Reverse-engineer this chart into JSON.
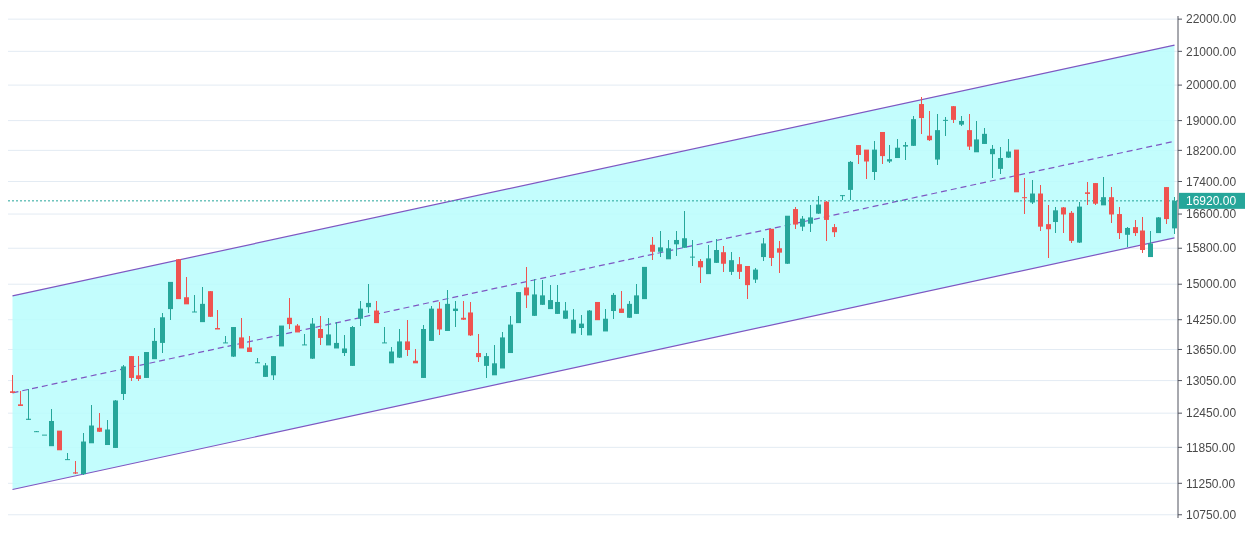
{
  "chart_data": {
    "type": "candlestick",
    "log": true,
    "grid": "y",
    "tick_labels": "y",
    "ylim": [
      10700,
      22100
    ],
    "yticks": [
      {
        "value": 10750,
        "label": "10750.00"
      },
      {
        "value": 11250,
        "label": "11250.00"
      },
      {
        "value": 11850,
        "label": "11850.00"
      },
      {
        "value": 12450,
        "label": "12450.00"
      },
      {
        "value": 13050,
        "label": "13050.00"
      },
      {
        "value": 13650,
        "label": "13650.00"
      },
      {
        "value": 14250,
        "label": "14250.00"
      },
      {
        "value": 15000,
        "label": "15000.00"
      },
      {
        "value": 15800,
        "label": "15800.00"
      },
      {
        "value": 16600,
        "label": "16600.00"
      },
      {
        "value": 17400,
        "label": "17400.00"
      },
      {
        "value": 18200,
        "label": "18200.00"
      },
      {
        "value": 19000,
        "label": "19000.00"
      },
      {
        "value": 20000,
        "label": "20000.00"
      },
      {
        "value": 21000,
        "label": "21000.00"
      },
      {
        "value": 22000,
        "label": "22000.00"
      }
    ],
    "series": [
      {
        "type": "line",
        "color": "#7e57c2",
        "line_style": "solid",
        "values": [
          14750,
          null,
          null,
          null,
          null,
          null,
          null,
          null,
          null,
          null,
          null,
          null,
          null,
          null,
          null,
          null,
          null,
          null,
          null,
          null,
          null,
          null,
          null,
          null,
          null,
          null,
          null,
          null,
          null,
          null,
          null,
          null,
          null,
          null,
          null,
          null,
          null,
          null,
          null,
          null,
          null,
          null,
          null,
          null,
          null,
          null,
          null,
          null,
          null,
          null,
          null,
          null,
          null,
          null,
          null,
          null,
          null,
          null,
          null,
          null,
          null,
          null,
          null,
          null,
          null,
          null,
          null,
          null,
          null,
          null,
          null,
          null,
          null,
          null,
          null,
          null,
          null,
          null,
          null,
          null,
          null,
          null,
          null,
          null,
          null,
          null,
          null,
          null,
          null,
          null,
          null,
          null,
          null,
          null,
          null,
          null,
          null,
          null,
          null,
          null,
          null,
          null,
          null,
          null,
          null,
          null,
          null,
          null,
          null,
          null,
          null,
          null,
          null,
          null,
          null,
          null,
          null,
          null,
          null,
          null,
          null,
          null,
          null,
          null,
          null,
          null,
          null,
          null,
          null,
          null,
          null,
          null,
          null,
          null,
          null,
          null,
          null,
          null,
          null,
          null,
          null,
          null,
          null,
          null,
          null,
          null,
          null,
          21190
        ]
      },
      {
        "type": "line",
        "color": "#7e57c2",
        "line_style": "solid",
        "values": [
          11150,
          null,
          null,
          null,
          null,
          null,
          null,
          null,
          null,
          null,
          null,
          null,
          null,
          null,
          null,
          null,
          null,
          null,
          null,
          null,
          null,
          null,
          null,
          null,
          null,
          null,
          null,
          null,
          null,
          null,
          null,
          null,
          null,
          null,
          null,
          null,
          null,
          null,
          null,
          null,
          null,
          null,
          null,
          null,
          null,
          null,
          null,
          null,
          null,
          null,
          null,
          null,
          null,
          null,
          null,
          null,
          null,
          null,
          null,
          null,
          null,
          null,
          null,
          null,
          null,
          null,
          null,
          null,
          null,
          null,
          null,
          null,
          null,
          null,
          null,
          null,
          null,
          null,
          null,
          null,
          null,
          null,
          null,
          null,
          null,
          null,
          null,
          null,
          null,
          null,
          null,
          null,
          null,
          null,
          null,
          null,
          null,
          null,
          null,
          null,
          null,
          null,
          null,
          null,
          null,
          null,
          null,
          null,
          null,
          null,
          null,
          null,
          null,
          null,
          null,
          null,
          null,
          null,
          null,
          null,
          null,
          null,
          null,
          null,
          null,
          null,
          null,
          null,
          null,
          null,
          null,
          null,
          null,
          null,
          null,
          null,
          null,
          null,
          null,
          null,
          null,
          null,
          null,
          null,
          null,
          null,
          null,
          16040
        ]
      },
      {
        "type": "line",
        "color": "#7e57c2",
        "line_style": "dashed",
        "values": [
          12820,
          null,
          null,
          null,
          null,
          null,
          null,
          null,
          null,
          null,
          null,
          null,
          null,
          null,
          null,
          null,
          null,
          null,
          null,
          null,
          null,
          null,
          null,
          null,
          null,
          null,
          null,
          null,
          null,
          null,
          null,
          null,
          null,
          null,
          null,
          null,
          null,
          null,
          null,
          null,
          null,
          null,
          null,
          null,
          null,
          null,
          null,
          null,
          null,
          null,
          null,
          null,
          null,
          null,
          null,
          null,
          null,
          null,
          null,
          null,
          null,
          null,
          null,
          null,
          null,
          null,
          null,
          null,
          null,
          null,
          null,
          null,
          null,
          null,
          null,
          null,
          null,
          null,
          null,
          null,
          null,
          null,
          null,
          null,
          null,
          null,
          null,
          null,
          null,
          null,
          null,
          null,
          null,
          null,
          null,
          null,
          null,
          null,
          null,
          null,
          null,
          null,
          null,
          null,
          null,
          null,
          null,
          null,
          null,
          null,
          null,
          null,
          null,
          null,
          null,
          null,
          null,
          null,
          null,
          null,
          null,
          null,
          null,
          null,
          null,
          null,
          null,
          null,
          null,
          null,
          null,
          null,
          null,
          null,
          null,
          null,
          null,
          null,
          null,
          null,
          null,
          null,
          null,
          null,
          null,
          null,
          null,
          18440
        ],
        "lower": [
          11150,
          null,
          null,
          null,
          null,
          null,
          null,
          null,
          null,
          null,
          null,
          null,
          null,
          null,
          null,
          null,
          null,
          null,
          null,
          null,
          null,
          null,
          null,
          null,
          null,
          null,
          null,
          null,
          null,
          null,
          null,
          null,
          null,
          null,
          null,
          null,
          null,
          null,
          null,
          null,
          null,
          null,
          null,
          null,
          null,
          null,
          null,
          null,
          null,
          null,
          null,
          null,
          null,
          null,
          null,
          null,
          null,
          null,
          null,
          null,
          null,
          null,
          null,
          null,
          null,
          null,
          null,
          null,
          null,
          null,
          null,
          null,
          null,
          null,
          null,
          null,
          null,
          null,
          null,
          null,
          null,
          null,
          null,
          null,
          null,
          null,
          null,
          null,
          null,
          null,
          null,
          null,
          null,
          null,
          null,
          null,
          null,
          null,
          null,
          null,
          null,
          null,
          null,
          null,
          null,
          null,
          null,
          null,
          null,
          null,
          null,
          null,
          null,
          null,
          null,
          null,
          null,
          null,
          null,
          null,
          null,
          null,
          null,
          null,
          null,
          null,
          null,
          null,
          null,
          null,
          null,
          null,
          null,
          null,
          null,
          null,
          null,
          null,
          null,
          null,
          null,
          null,
          null,
          null,
          null,
          null,
          null,
          16040
        ],
        "upper": [
          14750,
          null,
          null,
          null,
          null,
          null,
          null,
          null,
          null,
          null,
          null,
          null,
          null,
          null,
          null,
          null,
          null,
          null,
          null,
          null,
          null,
          null,
          null,
          null,
          null,
          null,
          null,
          null,
          null,
          null,
          null,
          null,
          null,
          null,
          null,
          null,
          null,
          null,
          null,
          null,
          null,
          null,
          null,
          null,
          null,
          null,
          null,
          null,
          null,
          null,
          null,
          null,
          null,
          null,
          null,
          null,
          null,
          null,
          null,
          null,
          null,
          null,
          null,
          null,
          null,
          null,
          null,
          null,
          null,
          null,
          null,
          null,
          null,
          null,
          null,
          null,
          null,
          null,
          null,
          null,
          null,
          null,
          null,
          null,
          null,
          null,
          null,
          null,
          null,
          null,
          null,
          null,
          null,
          null,
          null,
          null,
          null,
          null,
          null,
          null,
          null,
          null,
          null,
          null,
          null,
          null,
          null,
          null,
          null,
          null,
          null,
          null,
          null,
          null,
          null,
          null,
          null,
          null,
          null,
          null,
          null,
          null,
          null,
          null,
          null,
          null,
          null,
          null,
          null,
          null,
          null,
          null,
          null,
          null,
          null,
          null,
          null,
          null,
          null,
          null,
          null,
          null,
          null,
          null,
          null,
          null,
          null,
          21190
        ]
      }
    ],
    "ref_lines": [
      {
        "axis": "y",
        "value": 16920,
        "label": "16920.00",
        "color": "#26a69a",
        "line_style": "dotted"
      }
    ],
    "categories": [
      null,
      null,
      null,
      null,
      null,
      null,
      null,
      null,
      null,
      null,
      null,
      null,
      null,
      null,
      null,
      null,
      null,
      null,
      null,
      null,
      null,
      null,
      null,
      null,
      null,
      null,
      null,
      null,
      null,
      null,
      null,
      null,
      null,
      null,
      null,
      null,
      null,
      null,
      null,
      null,
      null,
      null,
      null,
      null,
      null,
      null,
      null,
      null,
      null,
      null,
      null,
      null,
      null,
      null,
      null,
      null,
      null,
      null,
      null,
      null,
      null,
      null,
      null,
      null,
      null,
      null,
      null,
      null,
      null,
      null,
      null,
      null,
      null,
      null,
      null,
      null,
      null,
      null,
      null,
      null,
      null,
      null,
      null,
      null,
      null,
      null,
      null,
      null,
      null,
      null,
      null,
      null,
      null,
      null,
      null,
      null,
      null,
      null,
      null,
      null,
      null,
      null,
      null,
      null,
      null,
      null,
      null,
      null,
      null,
      null,
      null,
      null,
      null,
      null,
      null,
      null,
      null,
      null,
      null,
      null,
      null,
      null,
      null,
      null,
      null,
      null,
      null,
      null,
      null,
      null,
      null,
      null,
      null,
      null,
      null,
      null,
      null,
      null,
      null,
      null,
      null,
      null,
      null,
      null,
      null,
      null,
      null,
      null
    ],
    "ohlc": [
      [
        12850,
        13150,
        12810,
        12820
      ],
      [
        12610,
        12850,
        12580,
        12580
      ],
      [
        12330,
        12900,
        12330,
        12350
      ],
      [
        12120,
        12140,
        12120,
        12130
      ],
      [
        12060,
        12070,
        12060,
        12070
      ],
      [
        11870,
        12530,
        11870,
        12310
      ],
      [
        12140,
        12140,
        11800,
        11800
      ],
      [
        11640,
        11760,
        11640,
        11650
      ],
      [
        11430,
        11620,
        11410,
        11410
      ],
      [
        11400,
        12100,
        11390,
        11950
      ],
      [
        11920,
        12590,
        11920,
        12230
      ],
      [
        12190,
        12460,
        12120,
        12120
      ],
      [
        11890,
        12320,
        11890,
        12160
      ],
      [
        11840,
        12680,
        11840,
        12680
      ],
      [
        12800,
        13340,
        12680,
        13320
      ],
      [
        13520,
        13530,
        13040,
        13100
      ],
      [
        13150,
        13530,
        13040,
        13080
      ],
      [
        13100,
        13610,
        13100,
        13600
      ],
      [
        13460,
        14080,
        13460,
        13820
      ],
      [
        13780,
        14380,
        13580,
        14300
      ],
      [
        14470,
        15050,
        14250,
        15050
      ],
      [
        15550,
        15550,
        14680,
        14680
      ],
      [
        14720,
        15160,
        14570,
        14570
      ],
      [
        14410,
        14770,
        14410,
        14420
      ],
      [
        14200,
        14950,
        14200,
        14580
      ],
      [
        14850,
        14850,
        14310,
        14310
      ],
      [
        14080,
        14460,
        14050,
        14050
      ],
      [
        13780,
        13910,
        13780,
        13790
      ],
      [
        13510,
        14110,
        13510,
        14100
      ],
      [
        13890,
        14290,
        13670,
        13670
      ],
      [
        13690,
        13910,
        13600,
        13600
      ],
      [
        13390,
        13480,
        13390,
        13400
      ],
      [
        13120,
        13380,
        13120,
        13340
      ],
      [
        13150,
        13520,
        13060,
        13520
      ],
      [
        13710,
        14130,
        13710,
        14130
      ],
      [
        14290,
        14700,
        14050,
        14160
      ],
      [
        14130,
        14170,
        13990,
        13990
      ],
      [
        13740,
        13950,
        13740,
        13750
      ],
      [
        13470,
        14290,
        13470,
        14170
      ],
      [
        14060,
        14330,
        13730,
        13880
      ],
      [
        13730,
        14280,
        13730,
        13950
      ],
      [
        13670,
        14200,
        13670,
        13780
      ],
      [
        13580,
        13930,
        13530,
        13670
      ],
      [
        13330,
        14120,
        13330,
        14100
      ],
      [
        14270,
        14640,
        14120,
        14480
      ],
      [
        14510,
        15010,
        14390,
        14600
      ],
      [
        14440,
        14640,
        14180,
        14180
      ],
      [
        13780,
        14100,
        13770,
        13790
      ],
      [
        13380,
        13700,
        13380,
        13610
      ],
      [
        13490,
        14060,
        13490,
        13810
      ],
      [
        13810,
        14250,
        13520,
        13640
      ],
      [
        13430,
        13660,
        13380,
        13380
      ],
      [
        13100,
        14150,
        13100,
        14060
      ],
      [
        13820,
        14540,
        13820,
        14480
      ],
      [
        14480,
        14620,
        13930,
        14050
      ],
      [
        14020,
        14870,
        14020,
        14580
      ],
      [
        14430,
        14640,
        14100,
        14480
      ],
      [
        14290,
        14640,
        14250,
        14250
      ],
      [
        14400,
        14620,
        13910,
        13930
      ],
      [
        13580,
        13950,
        13400,
        13500
      ],
      [
        13330,
        13580,
        13090,
        13520
      ],
      [
        13150,
        13730,
        13150,
        13380
      ],
      [
        13280,
        14000,
        13280,
        13890
      ],
      [
        13580,
        14330,
        13580,
        14150
      ],
      [
        14180,
        14830,
        14180,
        14830
      ],
      [
        14930,
        15380,
        14500,
        14760
      ],
      [
        14330,
        15110,
        14330,
        14780
      ],
      [
        14560,
        15100,
        14560,
        14760
      ],
      [
        14470,
        14990,
        14470,
        14660
      ],
      [
        14370,
        14990,
        14370,
        14620
      ],
      [
        14270,
        14620,
        14270,
        14440
      ],
      [
        13970,
        14480,
        13970,
        14250
      ],
      [
        14080,
        14340,
        13930,
        14170
      ],
      [
        13930,
        14460,
        13930,
        14440
      ],
      [
        14620,
        14620,
        14240,
        14240
      ],
      [
        14010,
        14480,
        14010,
        14270
      ],
      [
        14430,
        14810,
        14270,
        14770
      ],
      [
        14480,
        14850,
        14390,
        14390
      ],
      [
        14290,
        14640,
        14290,
        14580
      ],
      [
        14370,
        15010,
        14370,
        14760
      ],
      [
        14680,
        15380,
        14680,
        15380
      ],
      [
        15880,
        16060,
        15530,
        15720
      ],
      [
        15720,
        16190,
        15600,
        15820
      ],
      [
        15550,
        15990,
        15550,
        15800
      ],
      [
        15890,
        16190,
        15620,
        15990
      ],
      [
        15810,
        16670,
        15810,
        16030
      ],
      [
        15610,
        15990,
        15390,
        15610
      ],
      [
        15510,
        15550,
        15020,
        15370
      ],
      [
        15220,
        15880,
        15220,
        15570
      ],
      [
        15470,
        16010,
        15470,
        15760
      ],
      [
        15710,
        15860,
        15270,
        15450
      ],
      [
        15270,
        15720,
        15200,
        15530
      ],
      [
        15440,
        15610,
        15120,
        15270
      ],
      [
        15400,
        15400,
        14680,
        14980
      ],
      [
        15100,
        15360,
        15020,
        15320
      ],
      [
        15600,
        16030,
        15510,
        15910
      ],
      [
        16250,
        16250,
        15410,
        15580
      ],
      [
        15800,
        15970,
        15250,
        15700
      ],
      [
        15450,
        16560,
        15450,
        16560
      ],
      [
        16720,
        16780,
        16240,
        16350
      ],
      [
        16300,
        16560,
        16190,
        16490
      ],
      [
        16370,
        16830,
        16170,
        16520
      ],
      [
        16610,
        17030,
        16610,
        16830
      ],
      [
        16900,
        16920,
        15960,
        16460
      ],
      [
        16290,
        16360,
        16060,
        16170
      ],
      [
        17050,
        17060,
        16940,
        17060
      ],
      [
        17190,
        17930,
        16940,
        17900
      ],
      [
        18340,
        18340,
        17840,
        18080
      ],
      [
        18220,
        18220,
        17460,
        17910
      ],
      [
        17640,
        18460,
        17430,
        18220
      ],
      [
        18690,
        18690,
        17840,
        18050
      ],
      [
        17910,
        18340,
        17860,
        17970
      ],
      [
        18000,
        18510,
        18000,
        18270
      ],
      [
        18300,
        18410,
        17940,
        18340
      ],
      [
        18320,
        19120,
        18320,
        19040
      ],
      [
        19460,
        19660,
        18640,
        19070
      ],
      [
        18590,
        19270,
        18450,
        18470
      ],
      [
        17960,
        19170,
        17810,
        18740
      ],
      [
        19010,
        19090,
        18590,
        19020
      ],
      [
        19400,
        19400,
        18940,
        19020
      ],
      [
        18890,
        19120,
        18850,
        18990
      ],
      [
        18740,
        19170,
        18200,
        18300
      ],
      [
        18150,
        18990,
        18150,
        18490
      ],
      [
        18370,
        18810,
        18370,
        18640
      ],
      [
        18100,
        18340,
        17480,
        18240
      ],
      [
        17720,
        18290,
        17600,
        18000
      ],
      [
        18010,
        18490,
        18010,
        18170
      ],
      [
        18220,
        18220,
        17130,
        17130
      ],
      [
        17010,
        17500,
        16610,
        17000
      ],
      [
        16880,
        17430,
        16840,
        17100
      ],
      [
        17100,
        17310,
        16190,
        16300
      ],
      [
        16360,
        16830,
        15580,
        16240
      ],
      [
        16410,
        16760,
        16160,
        16690
      ],
      [
        16760,
        16760,
        16160,
        16590
      ],
      [
        16630,
        16670,
        15930,
        15970
      ],
      [
        15930,
        16880,
        15930,
        16780
      ],
      [
        17130,
        17380,
        16830,
        17090
      ],
      [
        17360,
        17360,
        16830,
        16850
      ],
      [
        16810,
        17520,
        16810,
        17010
      ],
      [
        17010,
        17260,
        16380,
        16590
      ],
      [
        16600,
        16760,
        16020,
        16150
      ],
      [
        16110,
        16290,
        15830,
        16270
      ],
      [
        16290,
        16470,
        16080,
        16150
      ],
      [
        16210,
        16520,
        15700,
        15760
      ],
      [
        15600,
        16210,
        15600,
        15910
      ],
      [
        16150,
        16520,
        16150,
        16520
      ],
      [
        17260,
        17260,
        16370,
        16480
      ],
      [
        16260,
        17010,
        16130,
        16920
      ]
    ],
    "colors": [
      "#ef5350",
      "#ef5350",
      "#26a69a",
      "#26a69a",
      "#26a69a",
      "#26a69a",
      "#ef5350",
      "#26a69a",
      "#ef5350",
      "#26a69a",
      "#26a69a",
      "#ef5350",
      "#26a69a",
      "#26a69a",
      "#26a69a",
      "#ef5350",
      "#ef5350",
      "#26a69a",
      "#26a69a",
      "#26a69a",
      "#26a69a",
      "#ef5350",
      "#ef5350",
      "#26a69a",
      "#26a69a",
      "#ef5350",
      "#ef5350",
      "#26a69a",
      "#26a69a",
      "#ef5350",
      "#ef5350",
      "#26a69a",
      "#26a69a",
      "#26a69a",
      "#26a69a",
      "#ef5350",
      "#ef5350",
      "#26a69a",
      "#26a69a",
      "#ef5350",
      "#26a69a",
      "#26a69a",
      "#26a69a",
      "#26a69a",
      "#26a69a",
      "#26a69a",
      "#ef5350",
      "#26a69a",
      "#26a69a",
      "#26a69a",
      "#ef5350",
      "#ef5350",
      "#26a69a",
      "#26a69a",
      "#ef5350",
      "#26a69a",
      "#26a69a",
      "#ef5350",
      "#ef5350",
      "#ef5350",
      "#26a69a",
      "#26a69a",
      "#26a69a",
      "#26a69a",
      "#26a69a",
      "#ef5350",
      "#26a69a",
      "#26a69a",
      "#26a69a",
      "#26a69a",
      "#26a69a",
      "#26a69a",
      "#26a69a",
      "#26a69a",
      "#ef5350",
      "#26a69a",
      "#26a69a",
      "#ef5350",
      "#26a69a",
      "#26a69a",
      "#26a69a",
      "#ef5350",
      "#26a69a",
      "#26a69a",
      "#26a69a",
      "#26a69a",
      "#26a69a",
      "#ef5350",
      "#26a69a",
      "#26a69a",
      "#ef5350",
      "#26a69a",
      "#ef5350",
      "#ef5350",
      "#26a69a",
      "#26a69a",
      "#ef5350",
      "#ef5350",
      "#26a69a",
      "#ef5350",
      "#26a69a",
      "#26a69a",
      "#26a69a",
      "#ef5350",
      "#ef5350",
      "#26a69a",
      "#26a69a",
      "#ef5350",
      "#ef5350",
      "#26a69a",
      "#ef5350",
      "#26a69a",
      "#26a69a",
      "#26a69a",
      "#26a69a",
      "#ef5350",
      "#ef5350",
      "#26a69a",
      "#26a69a",
      "#ef5350",
      "#26a69a",
      "#ef5350",
      "#26a69a",
      "#26a69a",
      "#26a69a",
      "#26a69a",
      "#26a69a",
      "#ef5350",
      "#ef5350",
      "#26a69a",
      "#ef5350",
      "#ef5350",
      "#26a69a",
      "#ef5350",
      "#ef5350",
      "#26a69a",
      "#ef5350",
      "#ef5350",
      "#26a69a",
      "#ef5350",
      "#ef5350",
      "#26a69a",
      "#ef5350",
      "#ef5350",
      "#26a69a",
      "#26a69a",
      "#ef5350",
      "#26a69a"
    ]
  }
}
